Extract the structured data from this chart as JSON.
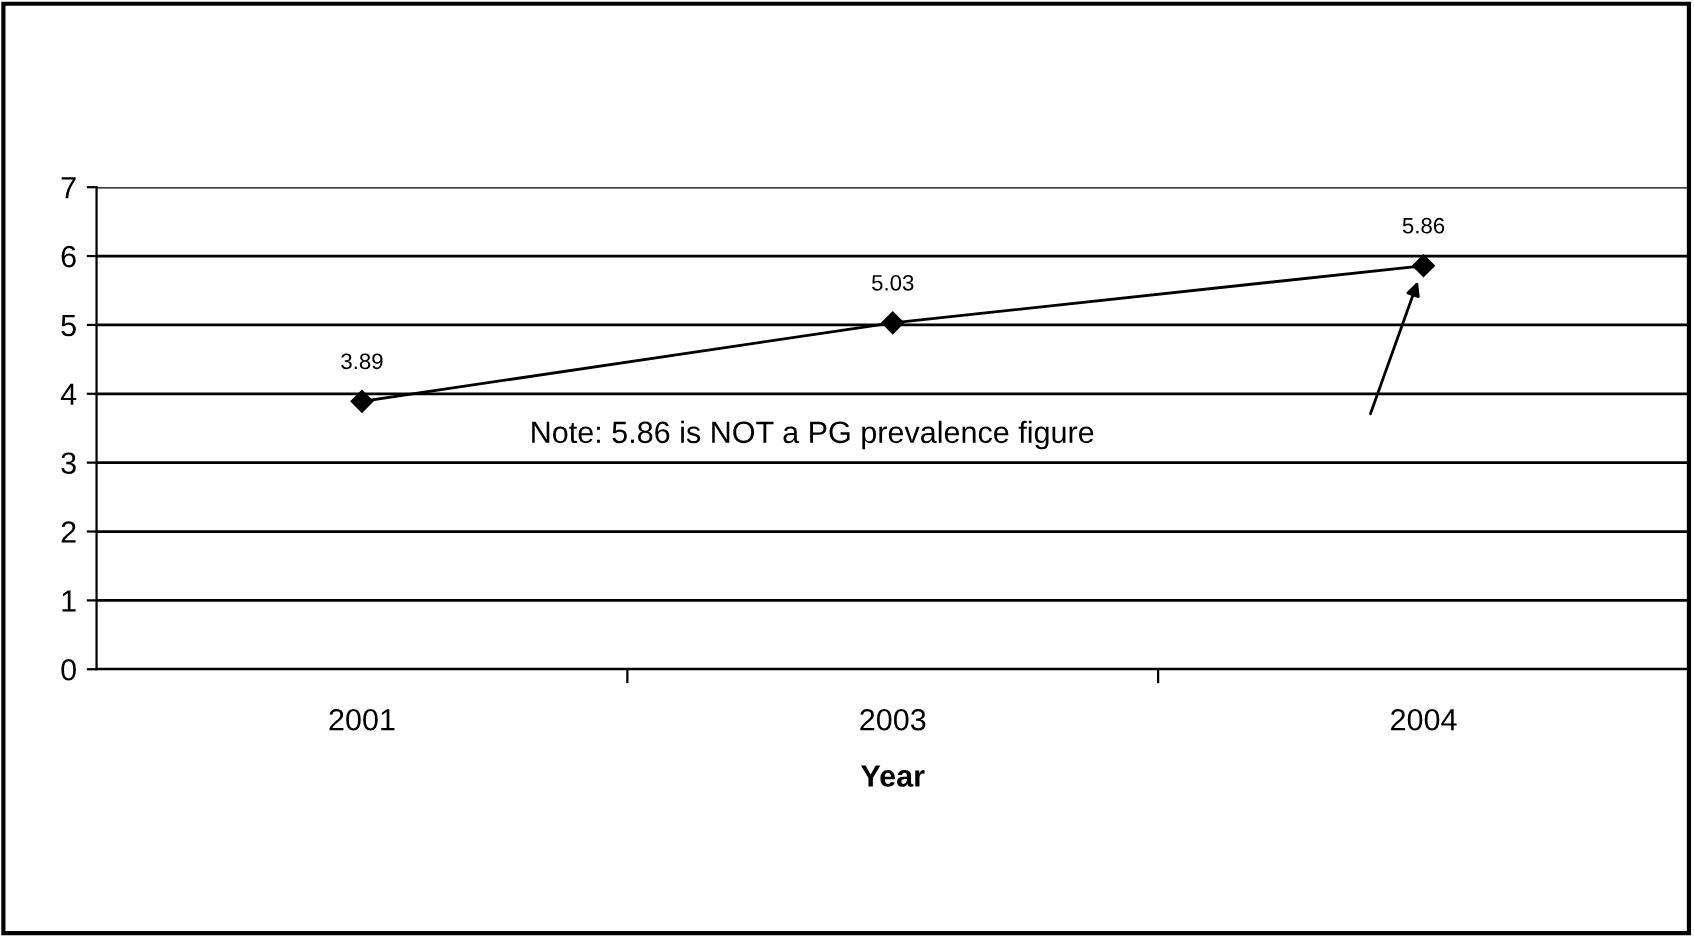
{
  "chart_data": {
    "type": "line",
    "xlabel": "Year",
    "categories": [
      "2001",
      "2003",
      "2004"
    ],
    "series": [
      {
        "color": "#000000",
        "values": [
          3.89,
          5.03,
          5.86
        ]
      }
    ],
    "ylim": [
      0,
      7
    ],
    "yticks": [
      0,
      1,
      2,
      3,
      4,
      5,
      6,
      7
    ],
    "grid": "y",
    "marker": "diamond",
    "line_style": "solid",
    "data_labels": true,
    "legend": false,
    "annotations": [
      "Note: 5.86 is NOT a PG prevalence figure"
    ]
  }
}
